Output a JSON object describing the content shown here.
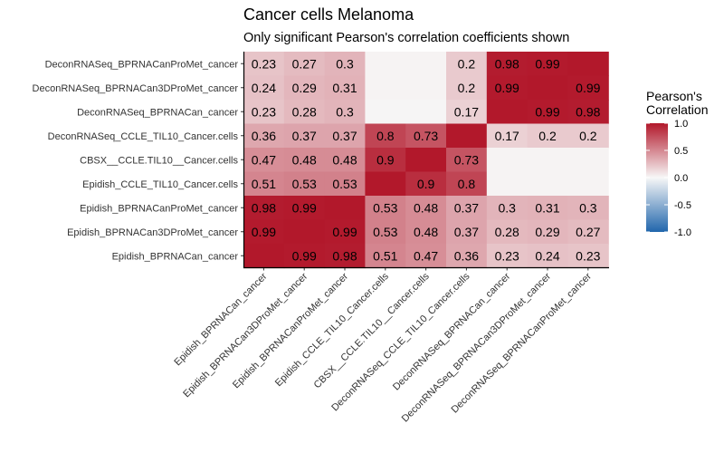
{
  "chart_data": {
    "type": "heatmap",
    "title": "Cancer cells Melanoma",
    "subtitle": "Only significant Pearson's correlation coefficients shown",
    "x_categories": [
      "Epidish_BPRNACan_cancer",
      "Epidish_BPRNACan3DProMet_cancer",
      "Epidish_BPRNACanProMet_cancer",
      "Epidish_CCLE_TIL10_Cancer.cells",
      "CBSX__CCLE.TIL10__Cancer.cells",
      "DeconRNASeq_CCLE_TIL10_Cancer.cells",
      "DeconRNASeq_BPRNACan_cancer",
      "DeconRNASeq_BPRNACan3DProMet_cancer",
      "DeconRNASeq_BPRNACanProMet_cancer"
    ],
    "y_categories_top_to_bottom": [
      "DeconRNASeq_BPRNACanProMet_cancer",
      "DeconRNASeq_BPRNACan3DProMet_cancer",
      "DeconRNASeq_BPRNACan_cancer",
      "DeconRNASeq_CCLE_TIL10_Cancer.cells",
      "CBSX__CCLE.TIL10__Cancer.cells",
      "Epidish_CCLE_TIL10_Cancer.cells",
      "Epidish_BPRNACanProMet_cancer",
      "Epidish_BPRNACan3DProMet_cancer",
      "Epidish_BPRNACan_cancer"
    ],
    "values": [
      [
        0.23,
        0.27,
        0.3,
        0.02,
        0.02,
        0.2,
        0.98,
        0.99,
        1.0
      ],
      [
        0.24,
        0.29,
        0.31,
        0.02,
        0.02,
        0.2,
        0.99,
        1.0,
        0.99
      ],
      [
        0.23,
        0.28,
        0.3,
        0.01,
        0.01,
        0.17,
        1.0,
        0.99,
        0.98
      ],
      [
        0.36,
        0.37,
        0.37,
        0.8,
        0.73,
        1.0,
        0.17,
        0.2,
        0.2
      ],
      [
        0.47,
        0.48,
        0.48,
        0.9,
        1.0,
        0.73,
        0.02,
        0.02,
        0.02
      ],
      [
        0.51,
        0.53,
        0.53,
        1.0,
        0.9,
        0.8,
        0.02,
        0.02,
        0.02
      ],
      [
        0.98,
        0.99,
        1.0,
        0.53,
        0.48,
        0.37,
        0.3,
        0.31,
        0.3
      ],
      [
        0.99,
        1.0,
        0.99,
        0.53,
        0.48,
        0.37,
        0.28,
        0.29,
        0.27
      ],
      [
        1.0,
        0.99,
        0.98,
        0.51,
        0.47,
        0.36,
        0.23,
        0.24,
        0.23
      ]
    ],
    "labels": [
      [
        "0.23",
        "0.27",
        "0.3",
        "",
        "",
        "0.2",
        "0.98",
        "0.99",
        ""
      ],
      [
        "0.24",
        "0.29",
        "0.31",
        "",
        "",
        "0.2",
        "0.99",
        "",
        "0.99"
      ],
      [
        "0.23",
        "0.28",
        "0.3",
        "",
        "",
        "0.17",
        "",
        "0.99",
        "0.98"
      ],
      [
        "0.36",
        "0.37",
        "0.37",
        "0.8",
        "0.73",
        "",
        "0.17",
        "0.2",
        "0.2"
      ],
      [
        "0.47",
        "0.48",
        "0.48",
        "0.9",
        "",
        "0.73",
        "",
        "",
        ""
      ],
      [
        "0.51",
        "0.53",
        "0.53",
        "",
        "0.9",
        "0.8",
        "",
        "",
        ""
      ],
      [
        "0.98",
        "0.99",
        "",
        "0.53",
        "0.48",
        "0.37",
        "0.3",
        "0.31",
        "0.3"
      ],
      [
        "0.99",
        "",
        "0.99",
        "0.53",
        "0.48",
        "0.37",
        "0.28",
        "0.29",
        "0.27"
      ],
      [
        "",
        "0.99",
        "0.98",
        "0.51",
        "0.47",
        "0.36",
        "0.23",
        "0.24",
        "0.23"
      ]
    ],
    "color_scale": {
      "low": "#2166ac",
      "mid": "#f7f7f7",
      "high": "#b2182b",
      "range": [
        -1,
        1
      ]
    },
    "legend": {
      "title_lines": [
        "Pearson's",
        "Correlation"
      ],
      "ticks": [
        "1.0",
        "0.5",
        "0.0",
        "-0.5",
        "-1.0"
      ],
      "tick_values": [
        1.0,
        0.5,
        0.0,
        -0.5,
        -1.0
      ],
      "position": "right"
    },
    "grid": false
  }
}
